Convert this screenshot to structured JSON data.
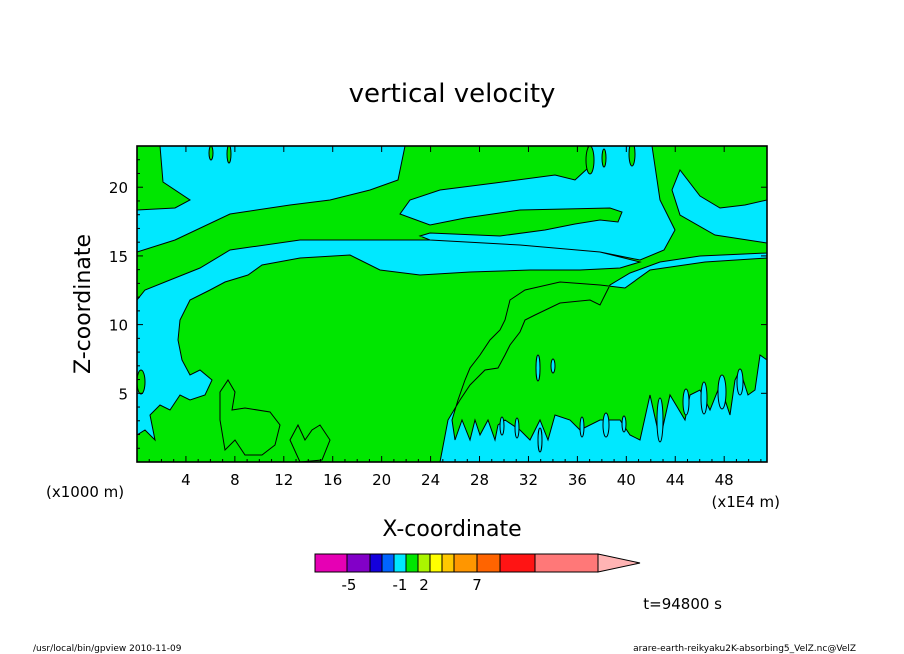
{
  "chart_data": {
    "type": "heatmap",
    "title": "vertical velocity",
    "xlabel": "X-coordinate",
    "ylabel": "Z-coordinate",
    "x_unit_left": "(x1000 m)",
    "x_unit_right": "(x1E4 m)",
    "xlim": [
      0,
      51.5
    ],
    "ylim": [
      0,
      23
    ],
    "x_ticks": [
      4,
      8,
      12,
      16,
      20,
      24,
      28,
      32,
      36,
      40,
      44,
      48
    ],
    "y_ticks": [
      5,
      10,
      15,
      20
    ],
    "fill_colors": {
      "near_zero_negative": "#00e8ff",
      "near_zero_positive": "#00e600"
    },
    "legend": {
      "placement": "bottom-center",
      "colors": [
        "#e600b4",
        "#8200c8",
        "#1400dc",
        "#0064ff",
        "#00e8ff",
        "#00e600",
        "#aaf500",
        "#ffff00",
        "#ffc800",
        "#ff9600",
        "#ff6400",
        "#ff1414",
        "#ff7878",
        "#ffb4b4"
      ],
      "labels": [
        "-5",
        "-1",
        "2",
        "7"
      ],
      "label_positions": [
        -5,
        -1,
        2,
        7
      ]
    },
    "time_label": "t=94800 s"
  },
  "footer": {
    "left": "/usr/local/bin/gpview   2010-11-09",
    "right": "arare-earth-reikyaku2K-absorbing5_VelZ.nc@VelZ"
  }
}
